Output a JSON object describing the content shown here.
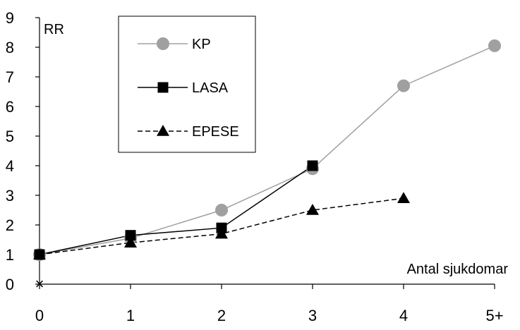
{
  "chart_data": {
    "type": "line",
    "title": "",
    "xlabel": "Antal sjukdomar",
    "ylabel": "RR",
    "categories": [
      "0",
      "1",
      "2",
      "3",
      "4",
      "5+"
    ],
    "ylim": [
      0,
      9
    ],
    "yticks": [
      "0",
      "1",
      "2",
      "3",
      "4",
      "5",
      "6",
      "7",
      "8",
      "9"
    ],
    "grid": false,
    "legend_position": "top-left",
    "origin_marker": "×",
    "series": [
      {
        "name": "KP",
        "values": [
          1.0,
          1.55,
          2.5,
          3.9,
          6.7,
          8.05
        ],
        "color": "#a0a0a0",
        "marker": "circle",
        "line": "solid"
      },
      {
        "name": "LASA",
        "values": [
          1.0,
          1.65,
          1.9,
          4.0,
          null,
          null
        ],
        "color": "#000000",
        "marker": "square",
        "line": "solid"
      },
      {
        "name": "EPESE",
        "values": [
          1.0,
          1.4,
          1.7,
          2.5,
          2.9,
          null
        ],
        "color": "#000000",
        "marker": "triangle",
        "line": "dashed"
      }
    ]
  }
}
